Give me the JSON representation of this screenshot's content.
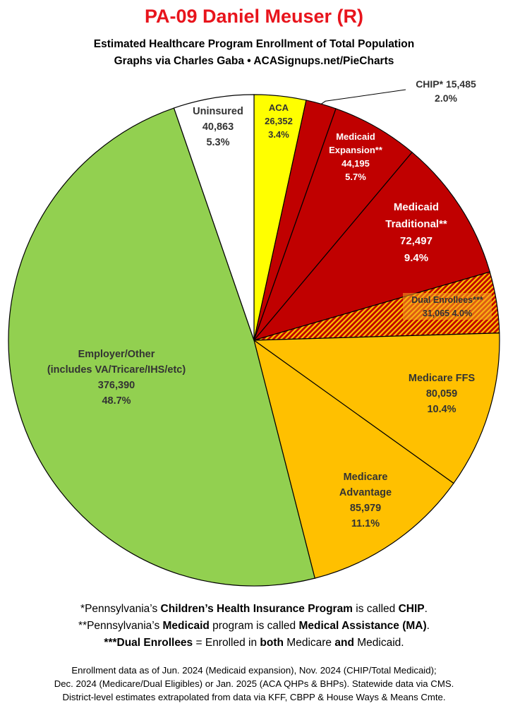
{
  "title": "PA-09 Daniel Meuser (R)",
  "subtitle_line1": "Estimated Healthcare Program Enrollment of Total Population",
  "subtitle_line2": "Graphs via Charles Gaba  •  ACASignups.net/PieCharts",
  "chart_data": {
    "type": "pie",
    "title": "PA-09 Daniel Meuser (R)",
    "start": "12 o'clock",
    "direction": "clockwise",
    "slices": [
      {
        "key": "aca",
        "label": [
          "ACA"
        ],
        "value": 26352,
        "value_text": "26,352",
        "percent": 3.4,
        "percent_text": "3.4%",
        "color": "#ffff00",
        "text_color": "#333333"
      },
      {
        "key": "chip",
        "label": [
          "CHIP*"
        ],
        "value": 15485,
        "value_text": "15,485",
        "percent": 2.0,
        "percent_text": "2.0%",
        "color": "#c00000",
        "text_color": "#333333"
      },
      {
        "key": "medicaid_expansion",
        "label": [
          "Medicaid",
          "Expansion**"
        ],
        "value": 44195,
        "value_text": "44,195",
        "percent": 5.7,
        "percent_text": "5.7%",
        "color": "#c00000",
        "text_color": "#ffffff"
      },
      {
        "key": "medicaid_traditional",
        "label": [
          "Medicaid",
          "Traditional**"
        ],
        "value": 72497,
        "value_text": "72,497",
        "percent": 9.4,
        "percent_text": "9.4%",
        "color": "#c00000",
        "text_color": "#ffffff"
      },
      {
        "key": "dual",
        "label": [
          "Dual Enrollees***"
        ],
        "value": 31065,
        "value_text": "31,065",
        "percent": 4.0,
        "percent_text": "4.0%",
        "color": "#c00000",
        "pattern_color": "#ffc000",
        "text_color": "#333333"
      },
      {
        "key": "medicare_ffs",
        "label": [
          "Medicare FFS"
        ],
        "value": 80059,
        "value_text": "80,059",
        "percent": 10.4,
        "percent_text": "10.4%",
        "color": "#ffc000",
        "text_color": "#333333"
      },
      {
        "key": "medicare_advantage",
        "label": [
          "Medicare",
          "Advantage"
        ],
        "value": 85979,
        "value_text": "85,979",
        "percent": 11.1,
        "percent_text": "11.1%",
        "color": "#ffc000",
        "text_color": "#333333"
      },
      {
        "key": "employer",
        "label": [
          "Employer/Other",
          "(includes VA/Tricare/IHS/etc)"
        ],
        "value": 376390,
        "value_text": "376,390",
        "percent": 48.7,
        "percent_text": "48.7%",
        "color": "#92d050",
        "text_color": "#333333"
      },
      {
        "key": "uninsured",
        "label": [
          "Uninsured"
        ],
        "value": 40863,
        "value_text": "40,863",
        "percent": 5.3,
        "percent_text": "5.3%",
        "color": "#ffffff",
        "text_color": "#333333"
      }
    ]
  },
  "notes": [
    [
      {
        "t": "*Pennsylvania’s "
      },
      {
        "t": "Children’s Health Insurance Program",
        "b": true
      },
      {
        "t": " is called "
      },
      {
        "t": "CHIP",
        "b": true
      },
      {
        "t": "."
      }
    ],
    [
      {
        "t": "**Pennsylvania’s "
      },
      {
        "t": "Medicaid",
        "b": true
      },
      {
        "t": " program is called "
      },
      {
        "t": "Medical Assistance (MA)",
        "b": true
      },
      {
        "t": "."
      }
    ],
    [
      {
        "t": "***Dual Enrollees",
        "b": true
      },
      {
        "t": " = Enrolled in "
      },
      {
        "t": "both",
        "b": true
      },
      {
        "t": " Medicare "
      },
      {
        "t": "and",
        "b": true
      },
      {
        "t": " Medicaid."
      }
    ]
  ],
  "source": [
    "Enrollment data as of Jun. 2024 (Medicaid expansion), Nov. 2024 (CHIP/Total Medicaid);",
    "Dec. 2024 (Medicare/Dual Eligibles) or Jan. 2025 (ACA QHPs & BHPs). Statewide data via CMS.",
    "District-level estimates extrapolated from data via KFF, CBPP & House Ways & Means Cmte."
  ]
}
